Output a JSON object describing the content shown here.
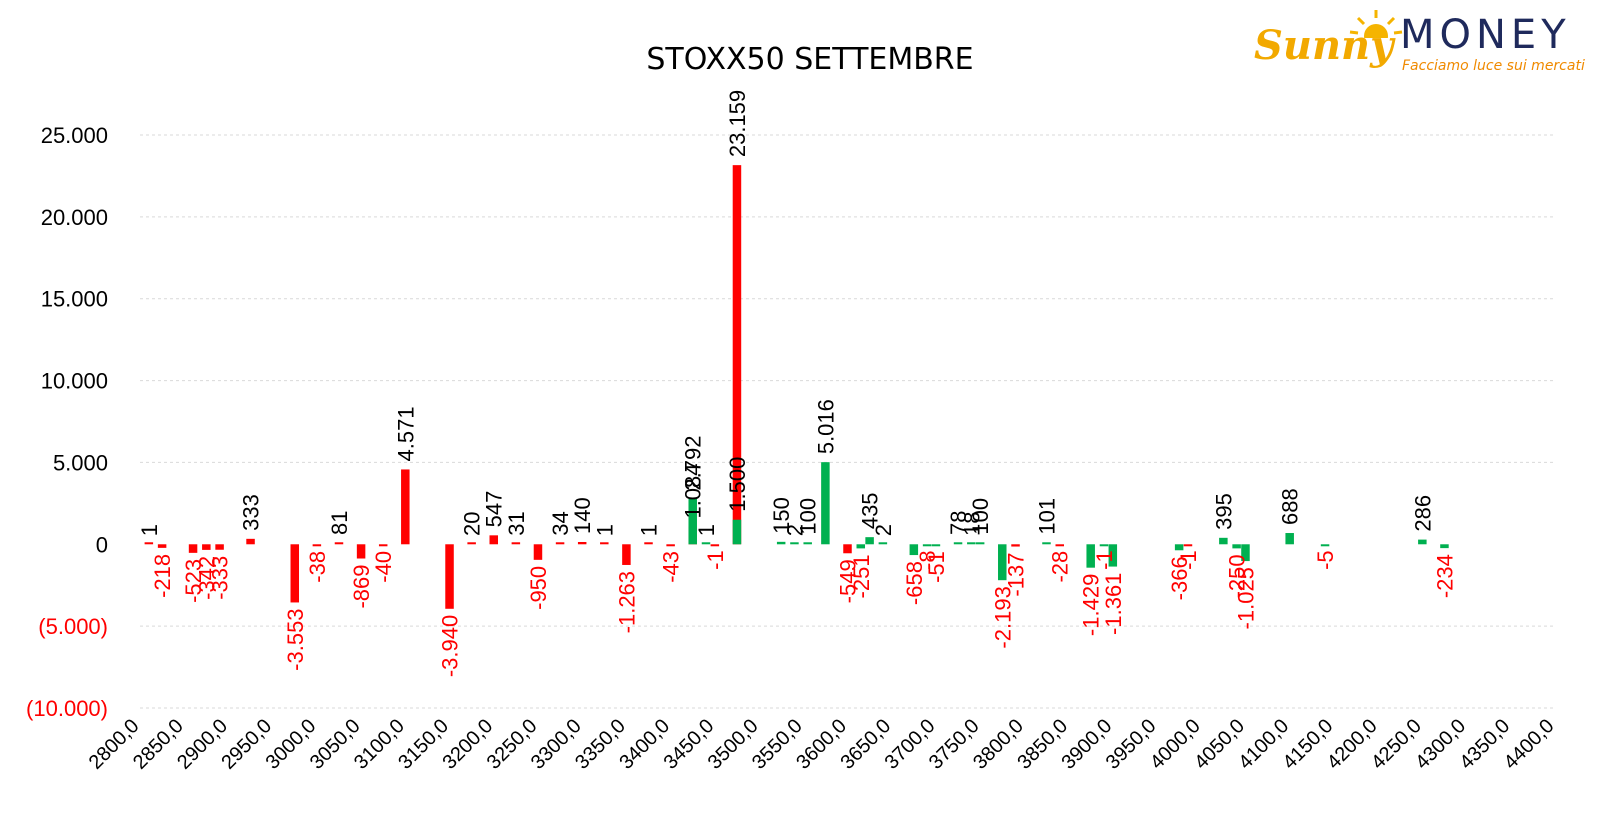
{
  "logo": {
    "brand_script": "Sunny",
    "brand_word": "MONEY",
    "tagline": "Facciamo luce sui mercati"
  },
  "colors": {
    "positive": "#00b050",
    "negative": "#ff0000",
    "gridline": "#d9d9d9",
    "text": "#000000",
    "negative_text": "#ff0000"
  },
  "chart_data": {
    "type": "bar",
    "title": "STOXX50 SETTEMBRE",
    "xlabel": "",
    "ylabel": "",
    "ylim": [
      -10000,
      25000
    ],
    "yticks": [
      {
        "value": 25000,
        "label": "25.000"
      },
      {
        "value": 20000,
        "label": "20.000"
      },
      {
        "value": 15000,
        "label": "15.000"
      },
      {
        "value": 10000,
        "label": "10.000"
      },
      {
        "value": 5000,
        "label": "5.000"
      },
      {
        "value": 0,
        "label": "0"
      },
      {
        "value": -5000,
        "label": "(5.000)"
      },
      {
        "value": -10000,
        "label": "(10.000)"
      }
    ],
    "xlim": [
      2800,
      4400
    ],
    "xticks": [
      {
        "value": 2800,
        "label": "2800,0"
      },
      {
        "value": 2850,
        "label": "2850,0"
      },
      {
        "value": 2900,
        "label": "2900,0"
      },
      {
        "value": 2950,
        "label": "2950,0"
      },
      {
        "value": 3000,
        "label": "3000,0"
      },
      {
        "value": 3050,
        "label": "3050,0"
      },
      {
        "value": 3100,
        "label": "3100,0"
      },
      {
        "value": 3150,
        "label": "3150,0"
      },
      {
        "value": 3200,
        "label": "3200,0"
      },
      {
        "value": 3250,
        "label": "3250,0"
      },
      {
        "value": 3300,
        "label": "3300,0"
      },
      {
        "value": 3350,
        "label": "3350,0"
      },
      {
        "value": 3400,
        "label": "3400,0"
      },
      {
        "value": 3450,
        "label": "3450,0"
      },
      {
        "value": 3500,
        "label": "3500,0"
      },
      {
        "value": 3550,
        "label": "3550,0"
      },
      {
        "value": 3600,
        "label": "3600,0"
      },
      {
        "value": 3650,
        "label": "3650,0"
      },
      {
        "value": 3700,
        "label": "3700,0"
      },
      {
        "value": 3750,
        "label": "3750,0"
      },
      {
        "value": 3800,
        "label": "3800,0"
      },
      {
        "value": 3850,
        "label": "3850,0"
      },
      {
        "value": 3900,
        "label": "3900,0"
      },
      {
        "value": 3950,
        "label": "3950,0"
      },
      {
        "value": 4000,
        "label": "4000,0"
      },
      {
        "value": 4050,
        "label": "4050,0"
      },
      {
        "value": 4100,
        "label": "4100,0"
      },
      {
        "value": 4150,
        "label": "4150,0"
      },
      {
        "value": 4200,
        "label": "4200,0"
      },
      {
        "value": 4250,
        "label": "4250,0"
      },
      {
        "value": 4300,
        "label": "4300,0"
      },
      {
        "value": 4350,
        "label": "4350,0"
      },
      {
        "value": 4400,
        "label": "4400,0"
      }
    ],
    "grid": true,
    "legend": "none",
    "series": [
      {
        "color": "#ff0000",
        "points": [
          {
            "x": 2810,
            "y": 1,
            "label": "1"
          },
          {
            "x": 2825,
            "y": -218,
            "label": "-218"
          },
          {
            "x": 2860,
            "y": -523,
            "label": "-523"
          },
          {
            "x": 2875,
            "y": -342,
            "label": "-342"
          },
          {
            "x": 2890,
            "y": -333,
            "label": "-333"
          },
          {
            "x": 2925,
            "y": 333,
            "label": "333"
          },
          {
            "x": 2975,
            "y": -3553,
            "label": "-3.553"
          },
          {
            "x": 3000,
            "y": -38,
            "label": "-38"
          },
          {
            "x": 3025,
            "y": 81,
            "label": "81"
          },
          {
            "x": 3050,
            "y": -869,
            "label": "-869"
          },
          {
            "x": 3075,
            "y": -40,
            "label": "-40"
          },
          {
            "x": 3100,
            "y": 4571,
            "label": "4.571"
          },
          {
            "x": 3150,
            "y": -3940,
            "label": "-3.940"
          },
          {
            "x": 3175,
            "y": 20,
            "label": "20"
          },
          {
            "x": 3200,
            "y": 547,
            "label": "547"
          },
          {
            "x": 3225,
            "y": 31,
            "label": "31"
          },
          {
            "x": 3250,
            "y": -950,
            "label": "-950"
          },
          {
            "x": 3275,
            "y": 34,
            "label": "34"
          },
          {
            "x": 3300,
            "y": 140,
            "label": "140"
          },
          {
            "x": 3325,
            "y": 1,
            "label": "1"
          },
          {
            "x": 3350,
            "y": -1263,
            "label": "-1.263"
          },
          {
            "x": 3375,
            "y": 1,
            "label": "1"
          },
          {
            "x": 3400,
            "y": -43,
            "label": "-43"
          },
          {
            "x": 3425,
            "y": 1084,
            "label": "1.084"
          },
          {
            "x": 3450,
            "y": -1,
            "label": "-1"
          },
          {
            "x": 3475,
            "y": 23159,
            "label": "23.159"
          }
        ]
      },
      {
        "color": "#00b050",
        "points": [
          {
            "x": 3425,
            "y": 2792,
            "label": "2.792"
          },
          {
            "x": 3440,
            "y": 1,
            "label": "1"
          },
          {
            "x": 3475,
            "y": 1500,
            "label": "1.500"
          },
          {
            "x": 3525,
            "y": 150,
            "label": "150"
          },
          {
            "x": 3540,
            "y": 2,
            "label": "2"
          },
          {
            "x": 3555,
            "y": 100,
            "label": "100"
          },
          {
            "x": 3575,
            "y": 5016,
            "label": "5.016"
          }
        ]
      },
      {
        "color": "#ff0000",
        "points": [
          {
            "x": 3600,
            "y": -549,
            "label": "-549"
          }
        ]
      },
      {
        "color": "#00b050",
        "points": [
          {
            "x": 3615,
            "y": -251,
            "label": "-251"
          },
          {
            "x": 3625,
            "y": 435,
            "label": "435"
          },
          {
            "x": 3640,
            "y": 2,
            "label": "2"
          },
          {
            "x": 3675,
            "y": -658,
            "label": "-658"
          },
          {
            "x": 3690,
            "y": -8,
            "label": "-8"
          },
          {
            "x": 3700,
            "y": -51,
            "label": "-51"
          },
          {
            "x": 3725,
            "y": 78,
            "label": "78"
          },
          {
            "x": 3740,
            "y": 18,
            "label": "18"
          },
          {
            "x": 3750,
            "y": 100,
            "label": "100"
          },
          {
            "x": 3775,
            "y": -2193,
            "label": "-2.193"
          }
        ]
      },
      {
        "color": "#ff0000",
        "points": [
          {
            "x": 3790,
            "y": -137,
            "label": "-137"
          }
        ]
      },
      {
        "color": "#00b050",
        "points": [
          {
            "x": 3825,
            "y": 101,
            "label": "101"
          }
        ]
      },
      {
        "color": "#ff0000",
        "points": [
          {
            "x": 3840,
            "y": -28,
            "label": "-28"
          }
        ]
      },
      {
        "color": "#00b050",
        "points": [
          {
            "x": 3875,
            "y": -1429,
            "label": "-1.429"
          },
          {
            "x": 3890,
            "y": -1,
            "label": "-1"
          },
          {
            "x": 3900,
            "y": -1361,
            "label": "-1.361"
          },
          {
            "x": 3975,
            "y": -366,
            "label": "-366"
          }
        ]
      },
      {
        "color": "#ff0000",
        "points": [
          {
            "x": 3985,
            "y": -1,
            "label": "-1"
          }
        ]
      },
      {
        "color": "#00b050",
        "points": [
          {
            "x": 4025,
            "y": 395,
            "label": "395"
          },
          {
            "x": 4040,
            "y": -250,
            "label": "-250"
          },
          {
            "x": 4050,
            "y": -1025,
            "label": "-1.025"
          },
          {
            "x": 4100,
            "y": 688,
            "label": "688"
          },
          {
            "x": 4140,
            "y": -5,
            "label": "-5"
          },
          {
            "x": 4250,
            "y": 286,
            "label": "286"
          },
          {
            "x": 4275,
            "y": -234,
            "label": "-234"
          }
        ]
      }
    ]
  }
}
